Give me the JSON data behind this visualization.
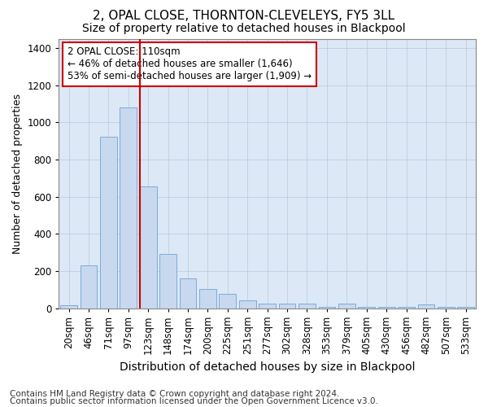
{
  "title1": "2, OPAL CLOSE, THORNTON-CLEVELEYS, FY5 3LL",
  "title2": "Size of property relative to detached houses in Blackpool",
  "xlabel": "Distribution of detached houses by size in Blackpool",
  "ylabel": "Number of detached properties",
  "categories": [
    "20sqm",
    "46sqm",
    "71sqm",
    "97sqm",
    "123sqm",
    "148sqm",
    "174sqm",
    "200sqm",
    "225sqm",
    "251sqm",
    "277sqm",
    "302sqm",
    "328sqm",
    "353sqm",
    "379sqm",
    "405sqm",
    "430sqm",
    "456sqm",
    "482sqm",
    "507sqm",
    "533sqm"
  ],
  "values": [
    15,
    230,
    920,
    1080,
    655,
    290,
    160,
    105,
    75,
    40,
    25,
    25,
    25,
    5,
    25,
    5,
    5,
    5,
    20,
    5,
    5
  ],
  "bar_color": "#c8d8ee",
  "bar_edge_color": "#7aacda",
  "vline_x": 4.0,
  "vline_color": "#cc0000",
  "annotation_text": "2 OPAL CLOSE: 110sqm\n← 46% of detached houses are smaller (1,646)\n53% of semi-detached houses are larger (1,909) →",
  "annotation_box_color": "#ffffff",
  "annotation_box_edge": "#cc0000",
  "ylim": [
    0,
    1450
  ],
  "yticks": [
    0,
    200,
    400,
    600,
    800,
    1000,
    1200,
    1400
  ],
  "footer1": "Contains HM Land Registry data © Crown copyright and database right 2024.",
  "footer2": "Contains public sector information licensed under the Open Government Licence v3.0.",
  "bg_color": "#ffffff",
  "plot_bg_color": "#dce8f5",
  "title1_fontsize": 11,
  "title2_fontsize": 10,
  "xlabel_fontsize": 10,
  "ylabel_fontsize": 9,
  "tick_fontsize": 8.5,
  "footer_fontsize": 7.5
}
